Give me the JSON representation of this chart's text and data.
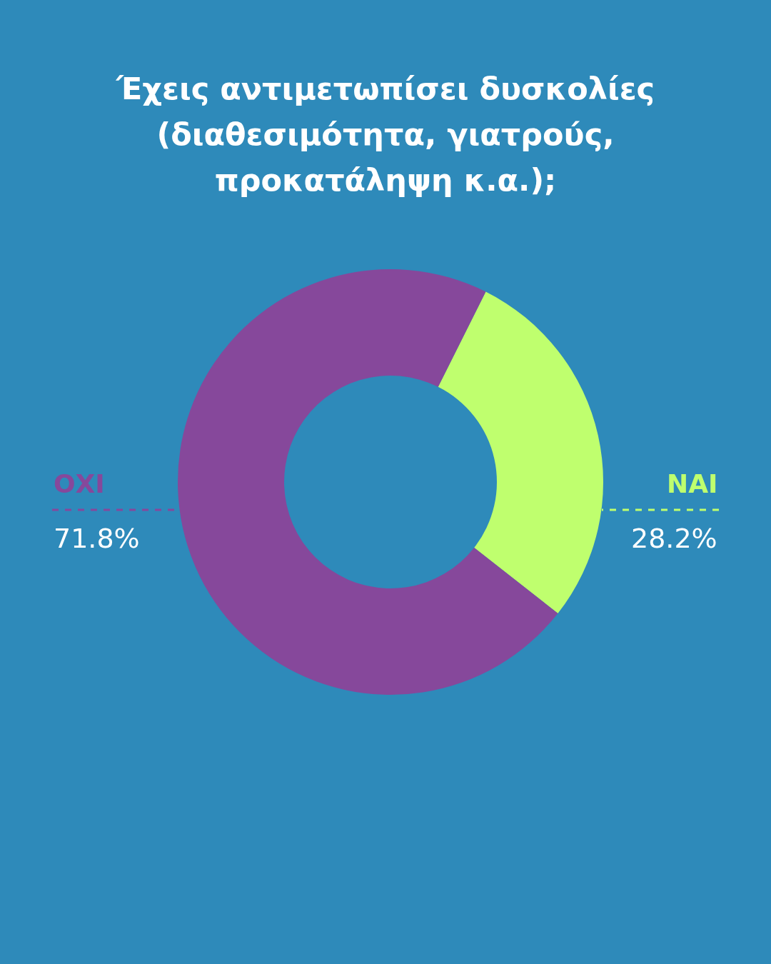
{
  "chart_data": {
    "type": "donut",
    "title": "Έχεις αντιμετωπίσει δυσκολίες (διαθεσιμότητα, γιατρούς, προκατάληψη κ.α.);",
    "categories": [
      "ΝΑΙ",
      "ΟΧΙ"
    ],
    "values": [
      28.2,
      71.8
    ],
    "value_labels": [
      "28.2%",
      "71.8%"
    ],
    "colors": [
      "#bfff6e",
      "#86489b"
    ],
    "legend": false
  }
}
